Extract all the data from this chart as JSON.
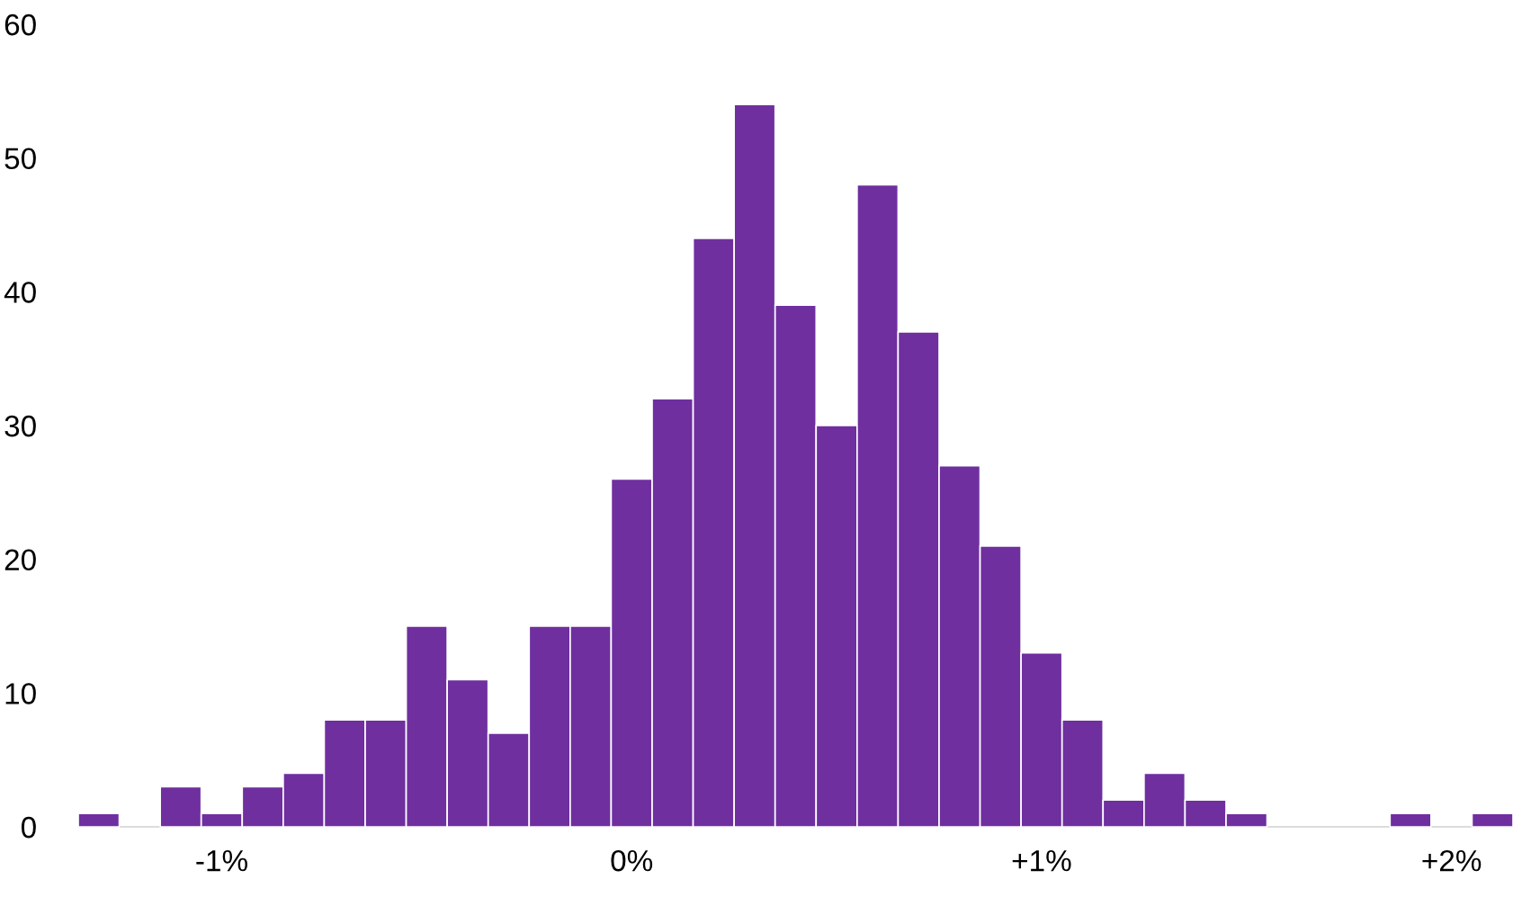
{
  "chart_data": {
    "type": "histogram",
    "color": "#6f2f9f",
    "bins": [
      -1.35,
      -1.25,
      -1.15,
      -1.05,
      -0.95,
      -0.85,
      -0.75,
      -0.65,
      -0.55,
      -0.45,
      -0.35,
      -0.25,
      -0.15,
      -0.05,
      0.05,
      0.15,
      0.25,
      0.35,
      0.45,
      0.55,
      0.65,
      0.75,
      0.85,
      0.95,
      1.05,
      1.15,
      1.25,
      1.35,
      1.45,
      1.55,
      1.65,
      1.75,
      1.85,
      1.95,
      2.05,
      2.15
    ],
    "values": [
      1,
      0,
      3,
      1,
      3,
      4,
      8,
      8,
      15,
      11,
      7,
      15,
      15,
      26,
      32,
      44,
      54,
      39,
      30,
      48,
      37,
      27,
      21,
      13,
      8,
      2,
      4,
      2,
      1,
      0,
      0,
      0,
      1,
      0,
      1
    ],
    "xlim": [
      -1.35,
      2.15
    ],
    "ylim": [
      0,
      60
    ],
    "xticks": [
      {
        "value": -1,
        "label": "-1%"
      },
      {
        "value": 0,
        "label": "0%"
      },
      {
        "value": 1,
        "label": "+1%"
      },
      {
        "value": 2,
        "label": "+2%"
      }
    ],
    "yticks": [
      0,
      10,
      20,
      30,
      40,
      50,
      60
    ],
    "grid": false
  }
}
